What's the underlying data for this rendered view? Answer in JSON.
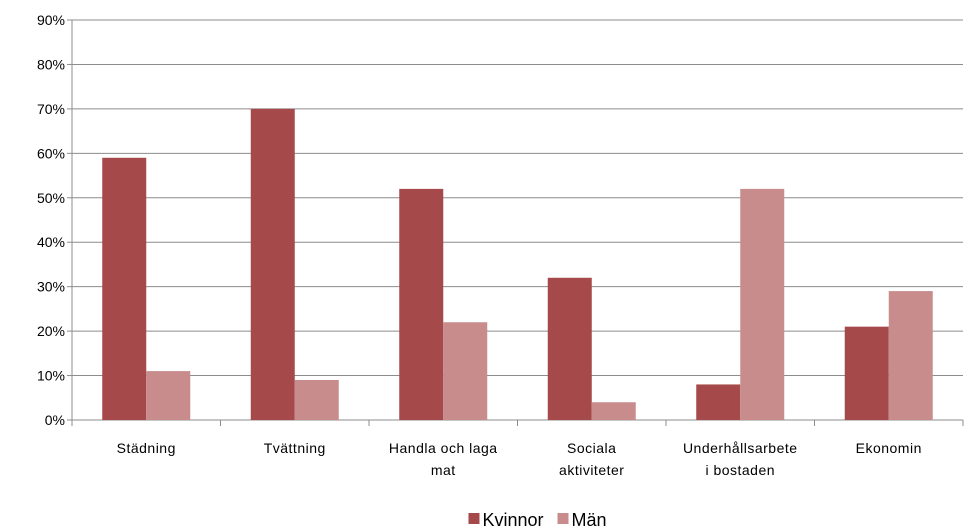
{
  "chart_data": {
    "type": "bar",
    "categories": [
      "Städning",
      "Tvättning",
      "Handla och laga mat",
      "Sociala aktiviteter",
      "Underhållsarbete i bostaden",
      "Ekonomin"
    ],
    "series": [
      {
        "name": "Kvinnor",
        "color": "#a5494a",
        "values": [
          59,
          70,
          52,
          32,
          8,
          21
        ]
      },
      {
        "name": "Män",
        "color": "#c98c8c",
        "values": [
          11,
          9,
          22,
          4,
          52,
          29
        ]
      }
    ],
    "ylim": [
      0,
      90
    ],
    "yticks": [
      {
        "value": 0,
        "label": "0%"
      },
      {
        "value": 10,
        "label": "10%"
      },
      {
        "value": 20,
        "label": "20%"
      },
      {
        "value": 30,
        "label": "30%"
      },
      {
        "value": 40,
        "label": "40%"
      },
      {
        "value": 50,
        "label": "50%"
      },
      {
        "value": 60,
        "label": "60%"
      },
      {
        "value": 70,
        "label": "70%"
      },
      {
        "value": 80,
        "label": "80%"
      },
      {
        "value": 90,
        "label": "90%"
      }
    ],
    "grid": true,
    "legend": "bottom"
  }
}
